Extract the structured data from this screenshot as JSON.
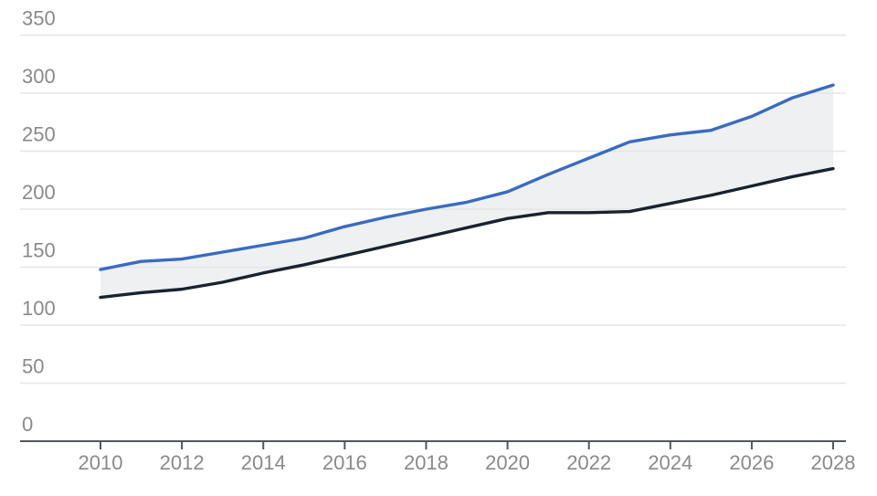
{
  "chart_data": {
    "type": "area",
    "title": "",
    "xlabel": "",
    "ylabel": "",
    "x": [
      2010,
      2011,
      2012,
      2013,
      2014,
      2015,
      2016,
      2017,
      2018,
      2019,
      2020,
      2021,
      2022,
      2023,
      2024,
      2025,
      2026,
      2027,
      2028
    ],
    "series": [
      {
        "name": "upper_blue_line",
        "color": "#3a6bc2",
        "values": [
          148,
          155,
          157,
          163,
          169,
          175,
          185,
          193,
          200,
          206,
          215,
          230,
          244,
          258,
          264,
          268,
          280,
          296,
          307
        ]
      },
      {
        "name": "lower_dark_line",
        "color": "#19232f",
        "values": [
          124,
          128,
          131,
          137,
          145,
          152,
          160,
          168,
          176,
          184,
          192,
          197,
          197,
          198,
          205,
          212,
          220,
          228,
          235
        ]
      }
    ],
    "band_between_series": true,
    "ylim": [
      0,
      350
    ],
    "yticks": [
      0,
      50,
      100,
      150,
      200,
      250,
      300,
      350
    ],
    "xticks": [
      2010,
      2012,
      2014,
      2016,
      2018,
      2020,
      2022,
      2024,
      2026,
      2028
    ],
    "grid": true,
    "legend": false
  },
  "colors": {
    "background": "#ffffff",
    "band_fill": "#eef0f2",
    "gridline": "#e4e5e7",
    "axis_line": "#53575c",
    "tick_mark": "#53575c",
    "tick_label": "#8a8a8a",
    "blue_line": "#3a6bc2",
    "dark_line": "#19232f"
  },
  "labels": {
    "y_axis_ticks": [
      "0",
      "50",
      "100",
      "150",
      "200",
      "250",
      "300",
      "350"
    ],
    "x_axis_ticks": [
      "2010",
      "2012",
      "2014",
      "2016",
      "2018",
      "2020",
      "2022",
      "2024",
      "2026",
      "2028"
    ]
  }
}
